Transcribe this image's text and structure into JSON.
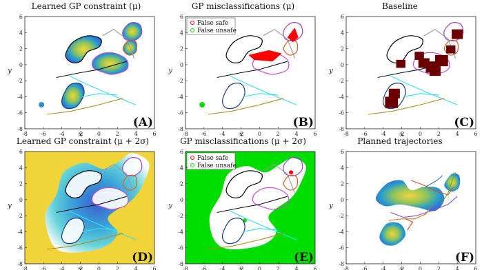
{
  "panels": [
    {
      "id": "A",
      "title": "Learned GP constraint (μ)",
      "label": "(A)",
      "legend": []
    },
    {
      "id": "B",
      "title": "GP misclassifications (μ)",
      "label": "(B)",
      "legend": [
        "False safe",
        "False unsafe"
      ]
    },
    {
      "id": "C",
      "title": "Baseline",
      "label": "(C)",
      "legend": []
    },
    {
      "id": "D",
      "title": "Learned GP constraint (μ + 2σ)",
      "label": "(D)",
      "legend": []
    },
    {
      "id": "E",
      "title": "GP misclassifications (μ + 2σ)",
      "label": "(E)",
      "legend": [
        "False safe",
        "False unsafe"
      ]
    },
    {
      "id": "F",
      "title": "Planned trajectories",
      "label": "(F)",
      "legend": []
    }
  ],
  "axes": {
    "xlabel": "x",
    "ylabel": "y",
    "xticks": [
      "-8",
      "-6",
      "-4",
      "-2",
      "0",
      "2",
      "4",
      "6"
    ],
    "yticks": [
      "6",
      "4",
      "2",
      "0",
      "-2",
      "-4",
      "-6",
      "-8"
    ],
    "xlim": [
      -8,
      6
    ],
    "ylim": [
      -8,
      6
    ]
  },
  "colors": {
    "false_safe": "#ff0000",
    "false_unsafe": "#00dd00",
    "baseline_box": "#6b0000",
    "gp_low": "#2a8fd6",
    "gp_high": "#f0d43a"
  }
}
